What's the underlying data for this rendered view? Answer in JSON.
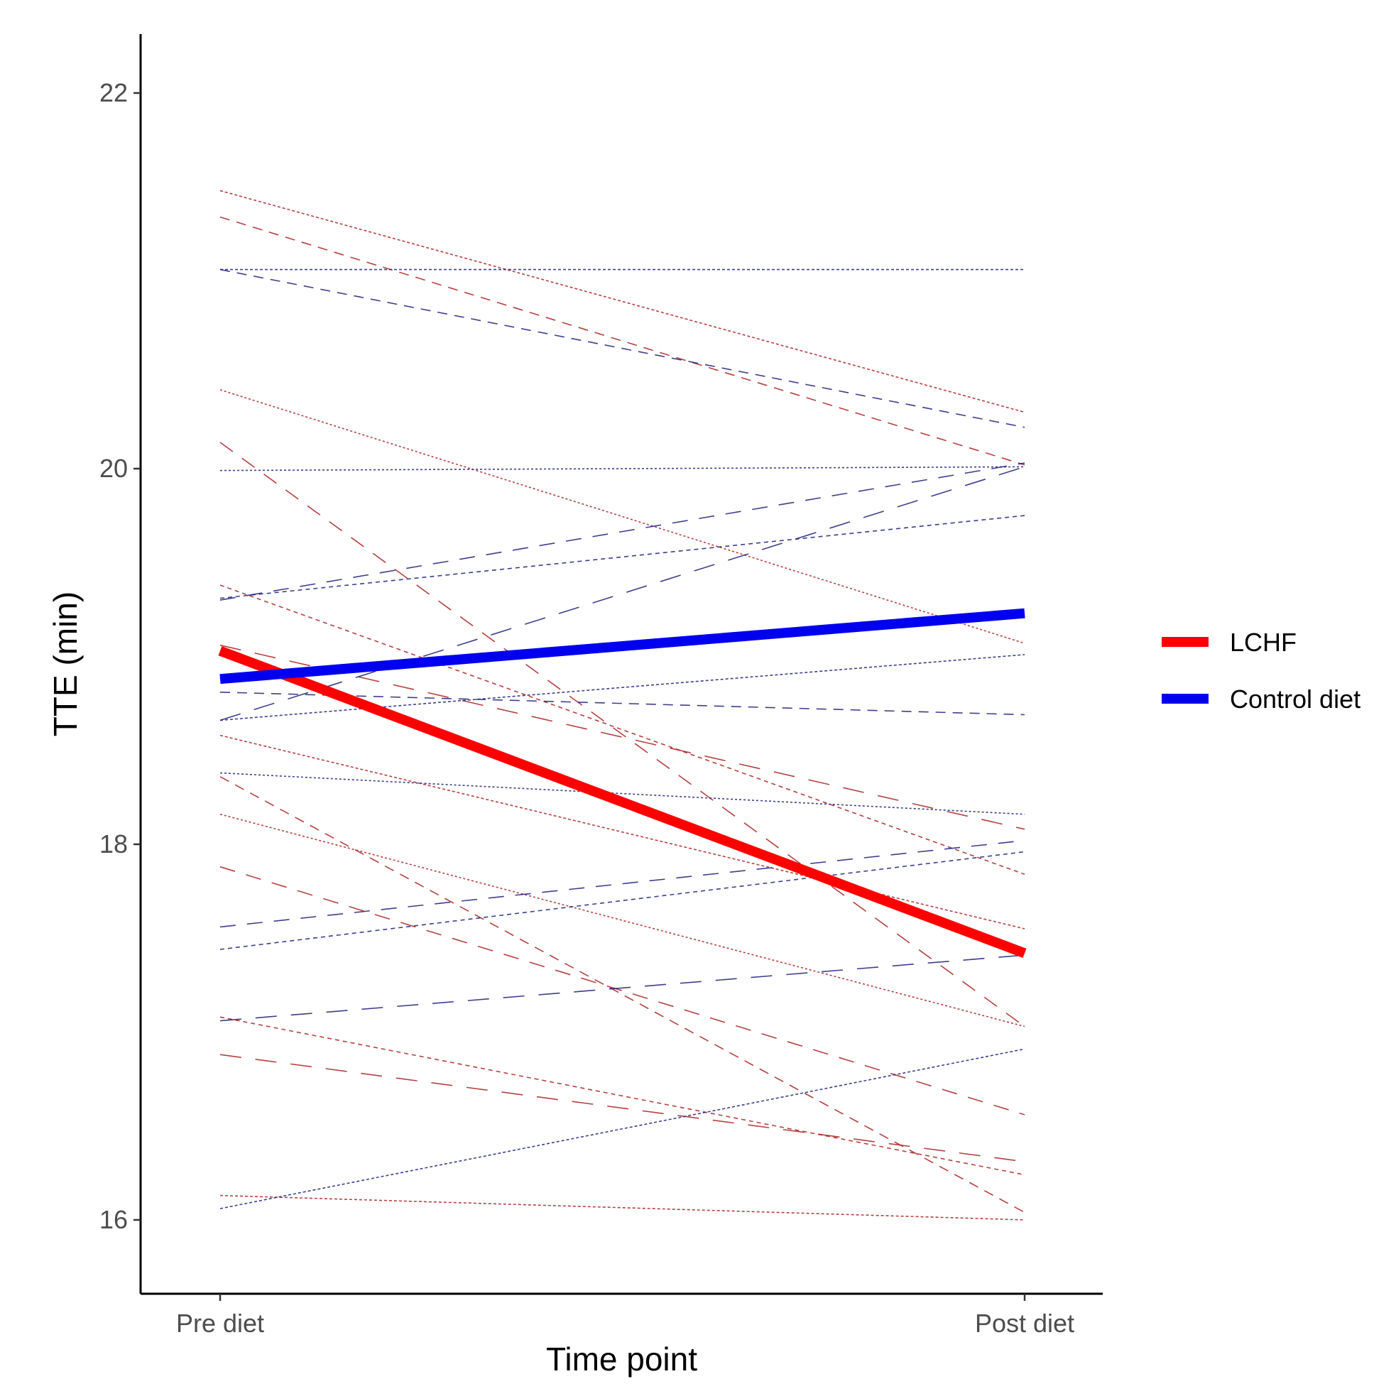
{
  "chart_data": {
    "type": "line",
    "title": "",
    "xlabel": "Time point",
    "ylabel": "TTE (min)",
    "categories": [
      "Pre diet",
      "Post diet"
    ],
    "yticks": [
      "16",
      "18",
      "20",
      "22"
    ],
    "ylim": [
      15.6,
      22.3
    ],
    "legend_position": "right",
    "legend": [
      {
        "name": "LCHF",
        "color": "#ff0000"
      },
      {
        "name": "Control diet",
        "color": "#0000ee"
      }
    ],
    "series": [
      {
        "name": "LCHF",
        "kind": "mean",
        "color": "#ff0000",
        "values": [
          19.03,
          17.42
        ]
      },
      {
        "name": "Control diet",
        "kind": "mean",
        "color": "#0000ee",
        "values": [
          18.88,
          19.23
        ]
      },
      {
        "name": "LCHF participant 1",
        "kind": "individual",
        "group": "LCHF",
        "values": [
          21.48,
          20.3
        ]
      },
      {
        "name": "LCHF participant 2",
        "kind": "individual",
        "group": "LCHF",
        "values": [
          21.34,
          20.02
        ]
      },
      {
        "name": "LCHF participant 3",
        "kind": "individual",
        "group": "LCHF",
        "values": [
          20.42,
          19.07
        ]
      },
      {
        "name": "LCHF participant 4",
        "kind": "individual",
        "group": "LCHF",
        "values": [
          20.14,
          17.03
        ]
      },
      {
        "name": "LCHF participant 5",
        "kind": "individual",
        "group": "LCHF",
        "values": [
          19.38,
          17.84
        ]
      },
      {
        "name": "LCHF participant 6",
        "kind": "individual",
        "group": "LCHF",
        "values": [
          19.06,
          18.08
        ]
      },
      {
        "name": "LCHF participant 7",
        "kind": "individual",
        "group": "LCHF",
        "values": [
          18.58,
          17.55
        ]
      },
      {
        "name": "LCHF participant 8",
        "kind": "individual",
        "group": "LCHF",
        "values": [
          18.36,
          16.04
        ]
      },
      {
        "name": "LCHF participant 9",
        "kind": "individual",
        "group": "LCHF",
        "values": [
          18.16,
          17.03
        ]
      },
      {
        "name": "LCHF participant 10",
        "kind": "individual",
        "group": "LCHF",
        "values": [
          17.88,
          16.56
        ]
      },
      {
        "name": "LCHF participant 11",
        "kind": "individual",
        "group": "LCHF",
        "values": [
          17.08,
          16.24
        ]
      },
      {
        "name": "LCHF participant 12",
        "kind": "individual",
        "group": "LCHF",
        "values": [
          16.88,
          16.31
        ]
      },
      {
        "name": "LCHF participant 13",
        "kind": "individual",
        "group": "LCHF",
        "values": [
          16.13,
          16.0
        ]
      },
      {
        "name": "Control participant 1",
        "kind": "individual",
        "group": "Control diet",
        "values": [
          21.06,
          21.06
        ]
      },
      {
        "name": "Control participant 2",
        "kind": "individual",
        "group": "Control diet",
        "values": [
          21.06,
          20.22
        ]
      },
      {
        "name": "Control participant 3",
        "kind": "individual",
        "group": "Control diet",
        "values": [
          19.99,
          20.01
        ]
      },
      {
        "name": "Control participant 4",
        "kind": "individual",
        "group": "Control diet",
        "values": [
          19.3,
          20.03
        ]
      },
      {
        "name": "Control participant 5",
        "kind": "individual",
        "group": "Control diet",
        "values": [
          19.31,
          19.75
        ]
      },
      {
        "name": "Control participant 6",
        "kind": "individual",
        "group": "Control diet",
        "values": [
          18.66,
          20.01
        ]
      },
      {
        "name": "Control participant 7",
        "kind": "individual",
        "group": "Control diet",
        "values": [
          18.66,
          19.01
        ]
      },
      {
        "name": "Control participant 8",
        "kind": "individual",
        "group": "Control diet",
        "values": [
          18.81,
          18.69
        ]
      },
      {
        "name": "Control participant 9",
        "kind": "individual",
        "group": "Control diet",
        "values": [
          18.38,
          18.16
        ]
      },
      {
        "name": "Control participant 10",
        "kind": "individual",
        "group": "Control diet",
        "values": [
          17.56,
          18.02
        ]
      },
      {
        "name": "Control participant 11",
        "kind": "individual",
        "group": "Control diet",
        "values": [
          17.44,
          17.96
        ]
      },
      {
        "name": "Control participant 12",
        "kind": "individual",
        "group": "Control diet",
        "values": [
          17.06,
          17.41
        ]
      },
      {
        "name": "Control participant 13",
        "kind": "individual",
        "group": "Control diet",
        "values": [
          16.06,
          16.91
        ]
      }
    ]
  }
}
